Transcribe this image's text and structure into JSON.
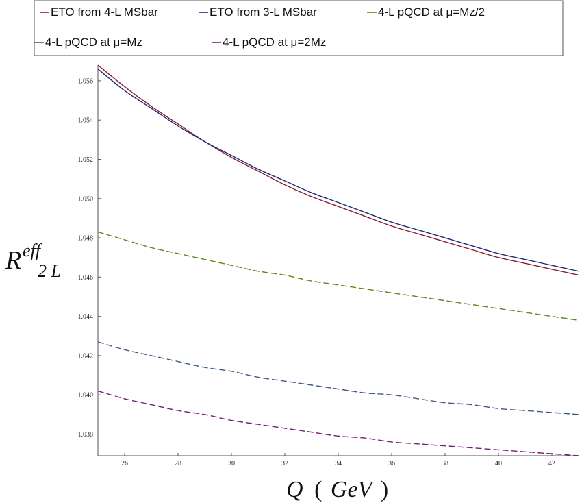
{
  "chart_data": {
    "type": "line",
    "xlabel": "Q",
    "xunit": "GeV",
    "ylabel": "R",
    "ylabel_sup": "eff",
    "ylabel_sub": "2 L",
    "xlim": [
      25,
      43
    ],
    "ylim": [
      1.0369,
      1.0568
    ],
    "x_ticks": [
      26,
      28,
      30,
      32,
      34,
      36,
      38,
      40,
      42
    ],
    "x_tick_labels": [
      "26",
      "28",
      "30",
      "32",
      "34",
      "36",
      "38",
      "40",
      "42"
    ],
    "y_ticks": [
      1.038,
      1.04,
      1.042,
      1.044,
      1.046,
      1.048,
      1.05,
      1.052,
      1.054,
      1.056
    ],
    "y_tick_labels": [
      "1.038",
      "1.040",
      "1.042",
      "1.044",
      "1.046",
      "1.048",
      "1.050",
      "1.052",
      "1.054",
      "1.056"
    ],
    "grid": false,
    "legend_position": "top",
    "x": [
      25,
      26,
      27,
      28,
      29,
      30,
      31,
      32,
      33,
      34,
      35,
      36,
      37,
      38,
      39,
      40,
      41,
      42,
      43
    ],
    "series": [
      {
        "name": "ETO from 4-L MSbar",
        "color": "#8b1c2c",
        "dash": "solid",
        "values": [
          1.0568,
          1.0557,
          1.0547,
          1.0538,
          1.0529,
          1.0521,
          1.0514,
          1.0507,
          1.0501,
          1.0496,
          1.0491,
          1.0486,
          1.0482,
          1.0478,
          1.0474,
          1.047,
          1.0467,
          1.0464,
          1.0461
        ]
      },
      {
        "name": "ETO from 3-L MSbar",
        "color": "#1f2a7a",
        "dash": "solid",
        "values": [
          1.0566,
          1.0555,
          1.0546,
          1.0537,
          1.0529,
          1.0522,
          1.0515,
          1.0509,
          1.0503,
          1.0498,
          1.0493,
          1.0488,
          1.0484,
          1.048,
          1.0476,
          1.0472,
          1.0469,
          1.0466,
          1.0463
        ]
      },
      {
        "name": "4-L pQCD at μ=Mz/2",
        "color": "#5a8a1a",
        "dash": "dashed",
        "values": [
          1.0483,
          1.0479,
          1.0475,
          1.0472,
          1.0469,
          1.0466,
          1.0463,
          1.0461,
          1.0458,
          1.0456,
          1.0454,
          1.0452,
          1.045,
          1.0448,
          1.0446,
          1.0444,
          1.0442,
          1.044,
          1.0438
        ]
      },
      {
        "name": "4-L pQCD at μ=Mz",
        "color": "#3f5a87",
        "dash": "dashed",
        "values": [
          1.0427,
          1.0423,
          1.042,
          1.0417,
          1.0414,
          1.0412,
          1.0409,
          1.0407,
          1.0405,
          1.0403,
          1.0401,
          1.04,
          1.0398,
          1.0396,
          1.0395,
          1.0393,
          1.0392,
          1.0391,
          1.039
        ]
      },
      {
        "name": "4-L pQCD at μ=2Mz",
        "color": "#7a1a78",
        "dash": "dashed",
        "values": [
          1.0402,
          1.0398,
          1.0395,
          1.0392,
          1.039,
          1.0387,
          1.0385,
          1.0383,
          1.0381,
          1.0379,
          1.0378,
          1.0376,
          1.0375,
          1.0374,
          1.0373,
          1.0372,
          1.0371,
          1.037,
          1.0369
        ]
      }
    ]
  }
}
